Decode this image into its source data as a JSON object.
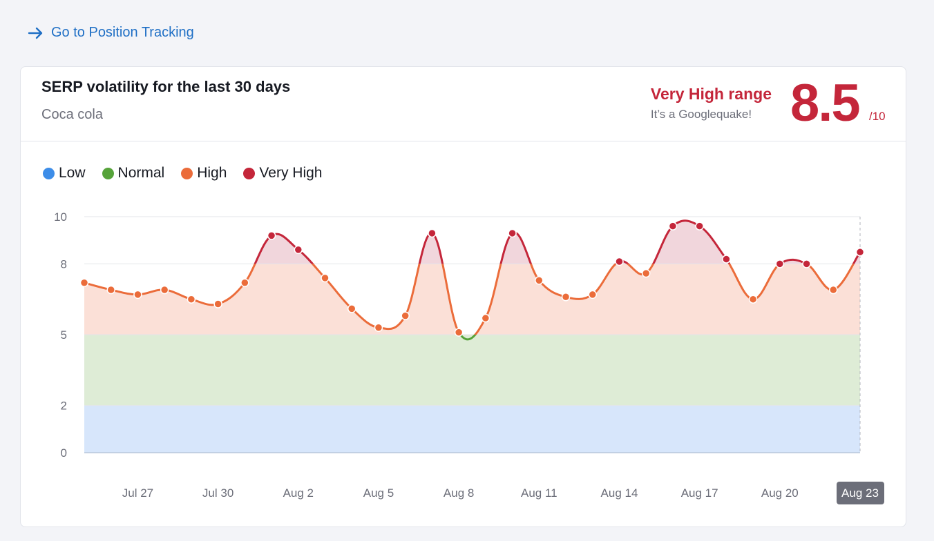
{
  "link": {
    "label": "Go to Position Tracking",
    "icon": "arrow-right-icon"
  },
  "card": {
    "title": "SERP volatility for the last 30 days",
    "subtitle": "Coca cola",
    "range_label": "Very High range",
    "range_note": "It’s a Googlequake!",
    "score": "8.5",
    "score_max": "/10"
  },
  "colors": {
    "low": "#3d8de8",
    "normal": "#56a33a",
    "high": "#eb6c3a",
    "very_high": "#c4263a",
    "link": "#1f6fc5"
  },
  "chart_data": {
    "type": "line",
    "legend": [
      {
        "label": "Low",
        "color": "#3d8de8"
      },
      {
        "label": "Normal",
        "color": "#56a33a"
      },
      {
        "label": "High",
        "color": "#eb6c3a"
      },
      {
        "label": "Very High",
        "color": "#c4263a"
      }
    ],
    "bands": [
      {
        "name": "Low",
        "from": 0,
        "to": 2
      },
      {
        "name": "Normal",
        "from": 2,
        "to": 5
      },
      {
        "name": "High",
        "from": 5,
        "to": 8
      },
      {
        "name": "Very High",
        "from": 8,
        "to": 10
      }
    ],
    "y_ticks": [
      "0",
      "2",
      "5",
      "8",
      "10"
    ],
    "x_tick_labels": [
      "Jul 27",
      "Jul 30",
      "Aug 2",
      "Aug 5",
      "Aug 8",
      "Aug 11",
      "Aug 14",
      "Aug 17",
      "Aug 20",
      "Aug 23"
    ],
    "x_tick_dates": [
      "2023-07-27",
      "2023-07-30",
      "2023-08-02",
      "2023-08-05",
      "2023-08-08",
      "2023-08-11",
      "2023-08-14",
      "2023-08-17",
      "2023-08-20",
      "2023-08-23"
    ],
    "highlighted_tick": "Aug 23",
    "x": [
      "2023-07-25",
      "2023-07-26",
      "2023-07-27",
      "2023-07-28",
      "2023-07-29",
      "2023-07-30",
      "2023-07-31",
      "2023-08-01",
      "2023-08-02",
      "2023-08-03",
      "2023-08-04",
      "2023-08-05",
      "2023-08-06",
      "2023-08-07",
      "2023-08-08",
      "2023-08-09",
      "2023-08-10",
      "2023-08-11",
      "2023-08-12",
      "2023-08-13",
      "2023-08-14",
      "2023-08-15",
      "2023-08-16",
      "2023-08-17",
      "2023-08-18",
      "2023-08-19",
      "2023-08-20",
      "2023-08-21",
      "2023-08-22",
      "2023-08-23"
    ],
    "values": [
      7.2,
      6.9,
      6.7,
      6.9,
      6.5,
      6.3,
      7.2,
      9.2,
      8.6,
      7.4,
      6.1,
      5.3,
      5.8,
      9.3,
      5.1,
      5.7,
      9.3,
      7.3,
      6.6,
      6.7,
      8.1,
      7.6,
      9.6,
      9.6,
      8.2,
      6.5,
      8.0,
      8.0,
      6.9,
      8.5
    ],
    "ylim": [
      0,
      10
    ],
    "grid": true
  }
}
